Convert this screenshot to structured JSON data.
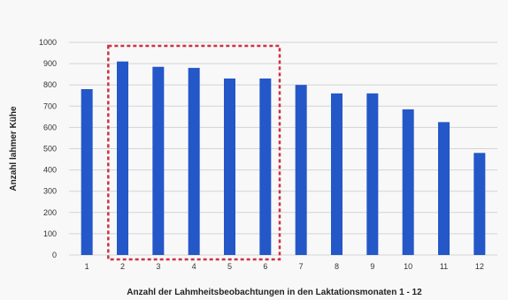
{
  "chart_data": {
    "type": "bar",
    "categories": [
      "1",
      "2",
      "3",
      "4",
      "5",
      "6",
      "7",
      "8",
      "9",
      "10",
      "11",
      "12"
    ],
    "values": [
      780,
      910,
      885,
      880,
      830,
      830,
      800,
      760,
      760,
      685,
      625,
      480
    ],
    "xlabel": "Anzahl der Lahmheitsbeobachtungen in den Laktationsmonaten 1 - 12",
    "ylabel": "Anzahl lahmer Kühe",
    "ylim": [
      0,
      1000
    ],
    "yticks": [
      "0",
      "100",
      "200",
      "300",
      "400",
      "500",
      "600",
      "700",
      "800",
      "900",
      "1000"
    ],
    "grid": true,
    "bar_color": "#2457c8",
    "highlight": {
      "from_category": "2",
      "to_category": "6",
      "color": "#cc3344",
      "style": "dashed"
    }
  }
}
